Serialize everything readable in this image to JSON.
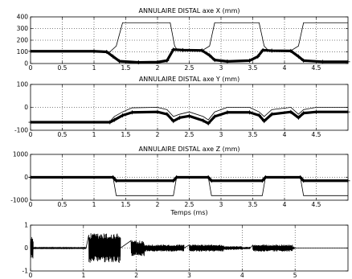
{
  "chart_data": [
    {
      "type": "line",
      "title": "ANNULAIRE DISTAL axe X (mm)",
      "xlim": [
        0,
        5
      ],
      "ylim": [
        0,
        400
      ],
      "xticks": [
        0,
        0.5,
        1,
        1.5,
        2,
        2.5,
        3,
        3.5,
        4,
        4.5
      ],
      "xtick_labels": [
        "0",
        "0.5",
        "1",
        "1.5",
        "2",
        "2.5",
        "3",
        "3.5",
        "4",
        "4.5"
      ],
      "yticks": [
        0,
        100,
        200,
        300,
        400
      ],
      "ytick_labels": [
        "0",
        "100",
        "200",
        "300",
        "400"
      ],
      "grid": true,
      "series": [
        {
          "style": "thin-line",
          "x": [
            0,
            1.25,
            1.35,
            1.45,
            2.2,
            2.27,
            2.32,
            2.4,
            2.7,
            2.82,
            2.9,
            3.6,
            3.68,
            3.75,
            4.1,
            4.22,
            4.3,
            5.0
          ],
          "y": [
            100,
            100,
            150,
            350,
            350,
            150,
            110,
            110,
            110,
            150,
            350,
            350,
            150,
            110,
            110,
            150,
            350,
            350
          ]
        },
        {
          "style": "thick-markers",
          "x": [
            0,
            1.0,
            1.2,
            1.3,
            1.4,
            1.7,
            2.0,
            2.15,
            2.25,
            2.4,
            2.7,
            2.82,
            2.9,
            3.1,
            3.45,
            3.58,
            3.66,
            3.8,
            4.1,
            4.22,
            4.3,
            4.6,
            5.0
          ],
          "y": [
            105,
            105,
            100,
            60,
            20,
            10,
            12,
            25,
            120,
            115,
            112,
            70,
            30,
            18,
            25,
            60,
            115,
            110,
            108,
            60,
            25,
            15,
            15
          ]
        }
      ]
    },
    {
      "type": "line",
      "title": "ANNULAIRE DISTAL axe Y (mm)",
      "xlim": [
        0,
        5
      ],
      "ylim": [
        -100,
        100
      ],
      "xticks": [
        0,
        0.5,
        1,
        1.5,
        2,
        2.5,
        3,
        3.5,
        4,
        4.5
      ],
      "xtick_labels": [
        "0",
        "0.5",
        "1",
        "1.5",
        "2",
        "2.5",
        "3",
        "3.5",
        "4",
        "4.5"
      ],
      "yticks": [
        -100,
        0,
        100
      ],
      "ytick_labels": [
        "-100",
        "0",
        "100"
      ],
      "grid": true,
      "series": [
        {
          "style": "thin-line",
          "x": [
            0,
            1.25,
            1.32,
            1.45,
            1.6,
            2.0,
            2.15,
            2.25,
            2.35,
            2.5,
            2.72,
            2.8,
            2.9,
            3.1,
            3.45,
            3.6,
            3.68,
            3.8,
            4.1,
            4.22,
            4.3,
            4.5,
            5.0
          ],
          "y": [
            -62,
            -62,
            -40,
            -20,
            -2,
            0,
            -10,
            -40,
            -30,
            -20,
            -40,
            -55,
            -20,
            0,
            0,
            -20,
            -40,
            -10,
            0,
            -30,
            -10,
            0,
            0
          ]
        },
        {
          "style": "thick-markers",
          "x": [
            0,
            1.25,
            1.32,
            1.45,
            1.6,
            2.0,
            2.15,
            2.25,
            2.35,
            2.5,
            2.72,
            2.8,
            2.9,
            3.1,
            3.45,
            3.6,
            3.68,
            3.8,
            4.1,
            4.22,
            4.3,
            4.5,
            5.0
          ],
          "y": [
            -65,
            -65,
            -55,
            -35,
            -22,
            -20,
            -30,
            -60,
            -45,
            -38,
            -58,
            -70,
            -40,
            -22,
            -22,
            -35,
            -60,
            -30,
            -20,
            -45,
            -25,
            -20,
            -20
          ]
        }
      ]
    },
    {
      "type": "line",
      "title": "ANNULAIRE DISTAL axe Z (mm)",
      "xlabel": "Temps (ms)",
      "xlim": [
        0,
        5
      ],
      "ylim": [
        -1000,
        1000
      ],
      "xticks": [
        0,
        0.5,
        1,
        1.5,
        2,
        2.5,
        3,
        3.5,
        4,
        4.5
      ],
      "xtick_labels": [
        "0",
        "0.5",
        "1",
        "1.5",
        "2",
        "2.5",
        "3",
        "3.5",
        "4",
        "4.5"
      ],
      "yticks": [
        -1000,
        0,
        1000
      ],
      "ytick_labels": [
        "-1000",
        "0",
        "1000"
      ],
      "grid": true,
      "series": [
        {
          "style": "thin-line",
          "x": [
            0,
            1.3,
            1.35,
            2.25,
            2.3,
            2.8,
            2.85,
            3.65,
            3.7,
            4.25,
            4.3,
            5.0
          ],
          "y": [
            0,
            0,
            -800,
            -800,
            0,
            0,
            -800,
            -800,
            0,
            0,
            -800,
            -800
          ]
        },
        {
          "style": "thick-markers",
          "x": [
            0,
            1.3,
            1.35,
            2.25,
            2.3,
            2.8,
            2.85,
            3.65,
            3.7,
            4.25,
            4.3,
            5.0
          ],
          "y": [
            0,
            0,
            -150,
            -150,
            0,
            0,
            -150,
            -150,
            0,
            0,
            -150,
            -150
          ]
        }
      ]
    },
    {
      "type": "line",
      "title": "",
      "xlim": [
        0,
        6
      ],
      "ylim": [
        -1,
        1
      ],
      "xticks": [
        0,
        1,
        2,
        3,
        4,
        5
      ],
      "xtick_labels": [
        "0",
        "1",
        "2",
        "3",
        "4",
        "5"
      ],
      "yticks": [
        -1,
        0,
        1
      ],
      "ytick_labels": [
        "-1",
        "0",
        "1"
      ],
      "grid": true,
      "series": [
        {
          "style": "signal",
          "note_segments": [
            [
              0.0,
              0.05,
              0.5
            ],
            [
              0.05,
              1.05,
              0.02
            ],
            [
              1.1,
              1.7,
              0.65
            ],
            [
              1.9,
              2.15,
              0.35
            ],
            [
              2.15,
              2.9,
              0.15
            ],
            [
              3.0,
              3.65,
              0.15
            ],
            [
              3.65,
              4.0,
              0.08
            ],
            [
              4.0,
              4.15,
              0.05
            ],
            [
              4.2,
              4.95,
              0.15
            ],
            [
              4.95,
              5.0,
              0.03
            ]
          ]
        }
      ]
    }
  ]
}
